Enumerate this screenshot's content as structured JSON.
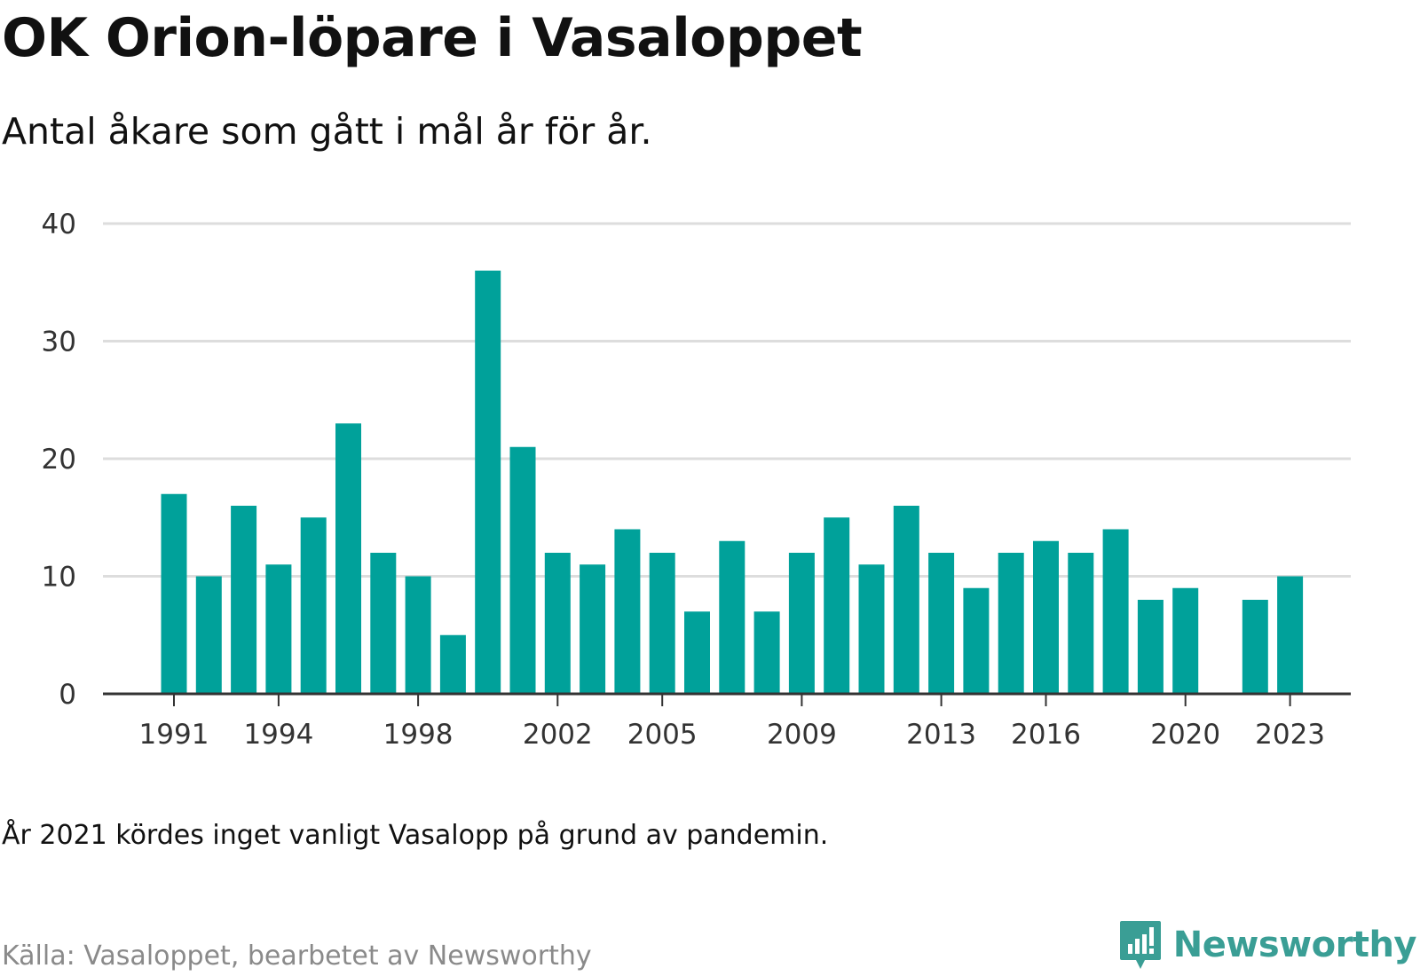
{
  "header": {
    "title": "OK Orion-löpare i Vasaloppet",
    "subtitle": "Antal åkare som gått i mål år för år."
  },
  "footnote": "År 2021 kördes inget vanligt Vasalopp på grund av pandemin.",
  "source": "Källa: Vasaloppet, bearbetet av Newsworthy",
  "brand": {
    "name": "Newsworthy",
    "icon": "newsworthy-logo-icon",
    "color": "#3a9e95"
  },
  "colors": {
    "bar": "#00a19a",
    "grid": "#dddddd",
    "axis": "#333333"
  },
  "chart_data": {
    "type": "bar",
    "title": "OK Orion-löpare i Vasaloppet",
    "subtitle": "Antal åkare som gått i mål år för år.",
    "xlabel": "",
    "ylabel": "",
    "ylim": [
      0,
      40
    ],
    "yticks": [
      0,
      10,
      20,
      30,
      40
    ],
    "xticks": [
      "1991",
      "1994",
      "1998",
      "2002",
      "2005",
      "2009",
      "2013",
      "2016",
      "2020",
      "2023"
    ],
    "grid": true,
    "categories": [
      "1991",
      "1992",
      "1993",
      "1994",
      "1995",
      "1996",
      "1997",
      "1998",
      "1999",
      "2000",
      "2001",
      "2002",
      "2003",
      "2004",
      "2005",
      "2006",
      "2007",
      "2008",
      "2009",
      "2010",
      "2011",
      "2012",
      "2013",
      "2014",
      "2015",
      "2016",
      "2017",
      "2018",
      "2019",
      "2020",
      "2021",
      "2022",
      "2023"
    ],
    "values": [
      17,
      10,
      16,
      11,
      15,
      23,
      12,
      10,
      5,
      36,
      21,
      12,
      11,
      14,
      12,
      7,
      13,
      7,
      12,
      15,
      11,
      16,
      12,
      9,
      12,
      13,
      12,
      14,
      8,
      9,
      null,
      8,
      10
    ]
  }
}
